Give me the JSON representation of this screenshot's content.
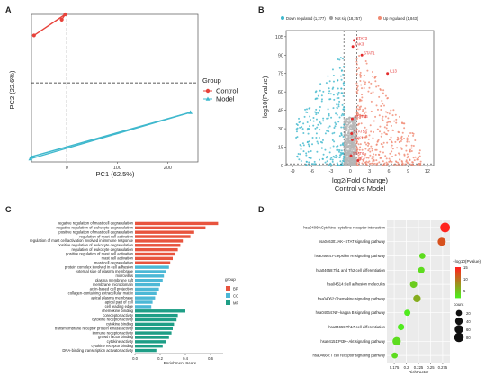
{
  "panels": {
    "A": {
      "label": "A",
      "xlabel": "PC1 (62.5%)",
      "ylabel": "PC2 (22.6%)",
      "xticks": [
        0,
        100,
        200
      ],
      "xlim": [
        -70,
        260
      ],
      "ylim": [
        -75,
        65
      ],
      "legend_title": "Group",
      "groups": [
        {
          "name": "Control",
          "color": "#e8423a",
          "shape": "circle",
          "points": [
            [
              -65,
              45
            ],
            [
              -10,
              60
            ],
            [
              -3,
              65
            ]
          ],
          "centroid": [
            -3,
            65
          ]
        },
        {
          "name": "Model",
          "color": "#3fb8cd",
          "shape": "triangle",
          "points": [
            [
              -70,
              -70
            ],
            [
              -72,
              -72
            ],
            [
              245,
              -28
            ]
          ],
          "centroid": [
            245,
            -28
          ]
        }
      ]
    },
    "B": {
      "label": "B",
      "xlabel": "log2(Fold Change)",
      "subtitle": "Control vs Model",
      "ylabel": "−log10(Pvalue)",
      "xticks": [
        -9,
        -6,
        -3,
        0,
        3,
        6,
        9,
        12
      ],
      "yticks": [
        0,
        15,
        30,
        45,
        60,
        75,
        90,
        105
      ],
      "xlim": [
        -10,
        13
      ],
      "ylim": [
        0,
        110
      ],
      "legend": [
        {
          "label": "Down regulated (1,277)",
          "color": "#3fb8cd"
        },
        {
          "label": "Not sig (18,257)",
          "color": "#9e9e9e"
        },
        {
          "label": "Up regulated (1,843)",
          "color": "#f08a73"
        }
      ],
      "genes": [
        {
          "name": "STAT3",
          "x": 0.6,
          "y": 102
        },
        {
          "name": "JAK3",
          "x": 0.4,
          "y": 97
        },
        {
          "name": "STAT1",
          "x": 1.8,
          "y": 90
        },
        {
          "name": "IL13",
          "x": 5.8,
          "y": 75
        },
        {
          "name": "STAT5B",
          "x": 0.3,
          "y": 38
        },
        {
          "name": "STAT5A",
          "x": 0.2,
          "y": 26
        },
        {
          "name": "JAK1",
          "x": 0.3,
          "y": 21
        },
        {
          "name": "STAT6",
          "x": 0.1,
          "y": 8
        },
        {
          "name": "IL4",
          "x": 1.2,
          "y": 4
        }
      ]
    },
    "C": {
      "label": "C",
      "xlabel": "Enrichment Score",
      "xticks": [
        0.0,
        0.2,
        0.4,
        0.6
      ],
      "xlim": [
        0,
        0.7
      ],
      "legend_title": "group",
      "groups": [
        {
          "name": "BP",
          "color": "#e8543e"
        },
        {
          "name": "CC",
          "color": "#4cb8d6"
        },
        {
          "name": "MF",
          "color": "#1e9e86"
        }
      ]
    },
    "D": {
      "label": "D",
      "xlabel": "RichFactor",
      "xticks": [
        0.175,
        0.2,
        0.225,
        0.25,
        0.275
      ],
      "xlim": [
        0.16,
        0.29
      ],
      "color_title": "−log10(Pvalue)",
      "color_ticks": [
        15,
        10,
        5
      ],
      "size_title": "count",
      "size_ticks": [
        20,
        40,
        60,
        80
      ]
    }
  },
  "chart_data": [
    {
      "type": "scatter",
      "title": "",
      "xlabel": "PC1 (62.5%)",
      "ylabel": "PC2 (22.6%)",
      "series": [
        {
          "name": "Control",
          "points": [
            [
              -65,
              45
            ],
            [
              -10,
              60
            ],
            [
              -3,
              65
            ]
          ]
        },
        {
          "name": "Model",
          "points": [
            [
              -70,
              -70
            ],
            [
              -72,
              -72
            ],
            [
              245,
              -28
            ]
          ]
        }
      ]
    },
    {
      "type": "scatter",
      "title": "",
      "xlabel": "log2(Fold Change)",
      "ylabel": "−log10(Pvalue)",
      "counts": {
        "down": 1277,
        "not_sig": 18257,
        "up": 1843
      },
      "labeled_genes": [
        "STAT3",
        "JAK3",
        "STAT1",
        "IL13",
        "STAT5B",
        "STAT5A",
        "JAK1",
        "STAT6",
        "IL4"
      ]
    },
    {
      "type": "bar",
      "title": "",
      "xlabel": "Enrichment Score",
      "categories": [
        "negative regulation of mast cell degranulation",
        "negative regulation of leukocyte degranulation",
        "positive regulation of mast cell degranulation",
        "regulation of mast cell activation",
        "regulation of mast cell activation involved in immune response",
        "positive regulation of leukocyte degranulation",
        "regulation of leukocyte degranulation",
        "positive regulation of mast cell activation",
        "mast cell activation",
        "mast cell degranulation",
        "protein complex involved in cell adhesion",
        "external side of plasma membrane",
        "microvillus",
        "plasma membrane raft",
        "membrane microdomain",
        "actin-based cell projection",
        "collagen-containing extracellular matrix",
        "apical plasma membrane",
        "apical part of cell",
        "cell leading edge",
        "chemokine binding",
        "coreceptor activity",
        "cytokine receptor activity",
        "cytokine binding",
        "transmembrane receptor protein kinase activity",
        "immune receptor activity",
        "growth factor binding",
        "cytokine activity",
        "cytokine receptor binding",
        "DNA-binding transcription activator activity"
      ],
      "groups": [
        "BP",
        "BP",
        "BP",
        "BP",
        "BP",
        "BP",
        "BP",
        "BP",
        "BP",
        "BP",
        "CC",
        "CC",
        "CC",
        "CC",
        "CC",
        "CC",
        "CC",
        "CC",
        "CC",
        "CC",
        "MF",
        "MF",
        "MF",
        "MF",
        "MF",
        "MF",
        "MF",
        "MF",
        "MF",
        "MF"
      ],
      "values": [
        0.66,
        0.56,
        0.47,
        0.44,
        0.38,
        0.36,
        0.34,
        0.32,
        0.3,
        0.28,
        0.27,
        0.25,
        0.23,
        0.22,
        0.2,
        0.19,
        0.17,
        0.16,
        0.14,
        0.13,
        0.4,
        0.34,
        0.33,
        0.31,
        0.3,
        0.29,
        0.27,
        0.25,
        0.22,
        0.17
      ]
    },
    {
      "type": "scatter",
      "title": "",
      "xlabel": "RichFactor",
      "categories": [
        "hsa04060:Cytokine−cytokine receptor interaction",
        "hsa04630:JAK−STAT signaling pathway",
        "hsa04664:Fc epsilon RI signaling pathway",
        "hsa04658:Th1 and Th2 cell differentiation",
        "hsa04514:Cell adhesion molecules",
        "hsa04062:Chemokine signaling pathway",
        "hsa04064:NF−kappa B signaling pathway",
        "hsa04659:Th17 cell differentiation",
        "hsa04151:PI3K−Akt signaling pathway",
        "hsa04660:T cell receptor signaling pathway"
      ],
      "richfactor": [
        0.28,
        0.273,
        0.233,
        0.231,
        0.215,
        0.222,
        0.202,
        0.189,
        0.18,
        0.176
      ],
      "neglog10p": [
        15,
        12,
        3,
        3,
        4,
        6,
        2,
        2,
        3,
        3
      ],
      "count": [
        85,
        50,
        20,
        25,
        35,
        40,
        22,
        25,
        55,
        20
      ]
    }
  ]
}
